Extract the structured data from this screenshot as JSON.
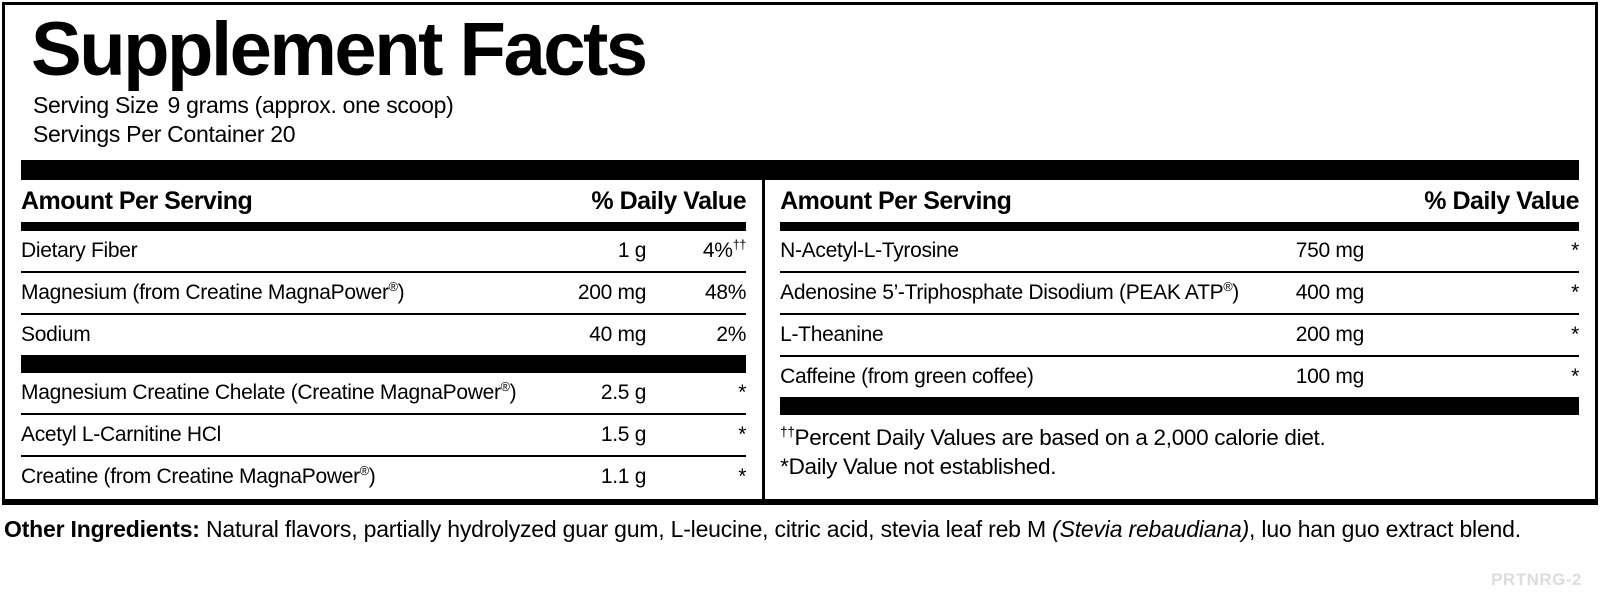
{
  "title": "Supplement Facts",
  "serving": {
    "size_label": "Serving Size",
    "size_value": "9 grams (approx. one scoop)",
    "per_container": "Servings Per Container 20"
  },
  "columns": {
    "left": {
      "header": {
        "amount": "Amount Per Serving",
        "dv": "% Daily Value"
      },
      "section1": [
        {
          "name": "Dietary Fiber",
          "amount": "1 g",
          "dv": "4%††"
        },
        {
          "name": "Magnesium (from Creatine MagnaPower®)",
          "amount": "200 mg",
          "dv": "48%"
        },
        {
          "name": "Sodium",
          "amount": "40 mg",
          "dv": "2%"
        }
      ],
      "section2": [
        {
          "name": "Magnesium Creatine Chelate (Creatine MagnaPower®)",
          "amount": "2.5 g",
          "dv": "*"
        },
        {
          "name": "Acetyl L-Carnitine HCl",
          "amount": "1.5 g",
          "dv": "*"
        },
        {
          "name": "Creatine (from Creatine MagnaPower®)",
          "amount": "1.1 g",
          "dv": "*"
        }
      ]
    },
    "right": {
      "header": {
        "amount": "Amount Per Serving",
        "dv": "% Daily Value"
      },
      "section1": [
        {
          "name": "N-Acetyl-L-Tyrosine",
          "amount": "750 mg",
          "dv": "*"
        },
        {
          "name": "Adenosine 5’-Triphosphate Disodium (PEAK ATP®)",
          "amount": "400 mg",
          "dv": "*"
        },
        {
          "name": "L-Theanine",
          "amount": "200 mg",
          "dv": "*"
        },
        {
          "name": "Caffeine (from green coffee)",
          "amount": "100 mg",
          "dv": "*"
        }
      ],
      "footnotes": [
        "††Percent Daily Values are based on a 2,000 calorie diet.",
        "*Daily Value not established."
      ]
    }
  },
  "other_ingredients": {
    "label": "Other Ingredients:",
    "before_italic": " Natural flavors, partially hydrolyzed guar gum, L-leucine, citric acid, stevia leaf reb M ",
    "italic": "(Stevia rebaudiana)",
    "after_italic": ", luo han guo extract blend."
  },
  "footer_code": "PRTNRG-2",
  "colors": {
    "ink": "#000000",
    "paper": "#ffffff",
    "footer_code_gray": "#dddddd"
  }
}
